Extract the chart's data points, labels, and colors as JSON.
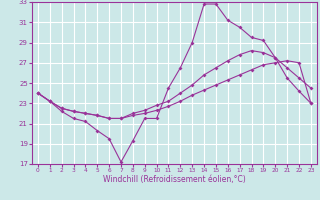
{
  "xlabel": "Windchill (Refroidissement éolien,°C)",
  "background_color": "#cce8e8",
  "grid_color": "#ffffff",
  "line_color": "#993399",
  "xlim_min": -0.5,
  "xlim_max": 23.5,
  "ylim_min": 17,
  "ylim_max": 33,
  "yticks": [
    17,
    19,
    21,
    23,
    25,
    27,
    29,
    31,
    33
  ],
  "xticks": [
    0,
    1,
    2,
    3,
    4,
    5,
    6,
    7,
    8,
    9,
    10,
    11,
    12,
    13,
    14,
    15,
    16,
    17,
    18,
    19,
    20,
    21,
    22,
    23
  ],
  "line1_x": [
    0,
    1,
    2,
    3,
    4,
    5,
    6,
    7,
    8,
    9,
    10,
    11,
    12,
    13,
    14,
    15,
    16,
    17,
    18,
    19,
    20,
    21,
    22,
    23
  ],
  "line1_y": [
    24.0,
    23.2,
    22.2,
    21.5,
    21.2,
    20.3,
    19.5,
    17.2,
    19.3,
    21.5,
    21.5,
    24.5,
    26.5,
    29.0,
    32.8,
    32.8,
    31.2,
    30.5,
    29.5,
    29.2,
    27.5,
    25.5,
    24.2,
    23.0
  ],
  "line2_x": [
    0,
    1,
    2,
    3,
    4,
    5,
    6,
    7,
    8,
    9,
    10,
    11,
    12,
    13,
    14,
    15,
    16,
    17,
    18,
    19,
    20,
    21,
    22,
    23
  ],
  "line2_y": [
    24.0,
    23.2,
    22.5,
    22.2,
    22.0,
    21.8,
    21.5,
    21.5,
    22.0,
    22.3,
    22.8,
    23.2,
    24.0,
    24.8,
    25.8,
    26.5,
    27.2,
    27.8,
    28.2,
    28.0,
    27.5,
    26.5,
    25.5,
    24.5
  ],
  "line3_x": [
    0,
    1,
    2,
    3,
    4,
    5,
    6,
    7,
    8,
    9,
    10,
    11,
    12,
    13,
    14,
    15,
    16,
    17,
    18,
    19,
    20,
    21,
    22,
    23
  ],
  "line3_y": [
    24.0,
    23.2,
    22.5,
    22.2,
    22.0,
    21.8,
    21.5,
    21.5,
    21.8,
    22.0,
    22.3,
    22.7,
    23.2,
    23.8,
    24.3,
    24.8,
    25.3,
    25.8,
    26.3,
    26.8,
    27.0,
    27.2,
    27.0,
    23.0
  ]
}
